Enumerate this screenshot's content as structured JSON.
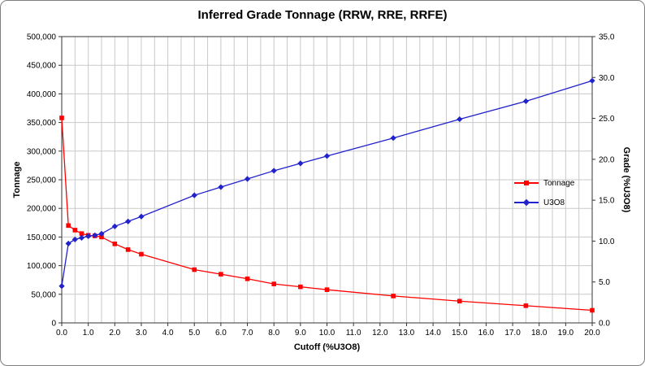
{
  "window": {
    "background_color": "#ffffff",
    "border_color": "#7f7f7f"
  },
  "chart_data": {
    "type": "line",
    "title": "Inferred Grade Tonnage (RRW, RRE, RRFE)",
    "xlabel": "Cutoff (%U3O8)",
    "ylabel_left": "Tonnage",
    "ylabel_right": "Grade (%U3O8)",
    "grid": true,
    "legend_position": "right-center",
    "x_axis": {
      "min": 0,
      "max": 20,
      "label_step": 1.0,
      "grid_step": 0.5
    },
    "y_left": {
      "min": 0,
      "max": 500000,
      "step": 50000
    },
    "y_right": {
      "min": 0,
      "max": 35,
      "step": 5
    },
    "grid_color": "#c9c9c9",
    "plot_border_color": "#333333",
    "x": [
      0,
      0.25,
      0.5,
      0.75,
      1.0,
      1.25,
      1.5,
      2.0,
      2.5,
      3.0,
      5.0,
      6.0,
      7.0,
      8.0,
      9.0,
      10.0,
      12.5,
      15.0,
      17.5,
      20.0
    ],
    "series": [
      {
        "name": "Tonnage",
        "axis": "left",
        "color": "#ff0000",
        "marker": "square",
        "values": [
          358000,
          170000,
          162000,
          156000,
          153000,
          152000,
          150000,
          138000,
          128000,
          120000,
          93000,
          85000,
          77000,
          68000,
          63000,
          58000,
          47000,
          38000,
          30000,
          22000
        ]
      },
      {
        "name": "U3O8",
        "axis": "right",
        "color": "#2222cc",
        "marker": "diamond",
        "values": [
          4.5,
          9.7,
          10.2,
          10.4,
          10.6,
          10.7,
          10.9,
          11.8,
          12.4,
          13.0,
          15.6,
          16.6,
          17.6,
          18.6,
          19.5,
          20.4,
          22.6,
          24.9,
          27.1,
          29.6
        ]
      }
    ]
  }
}
